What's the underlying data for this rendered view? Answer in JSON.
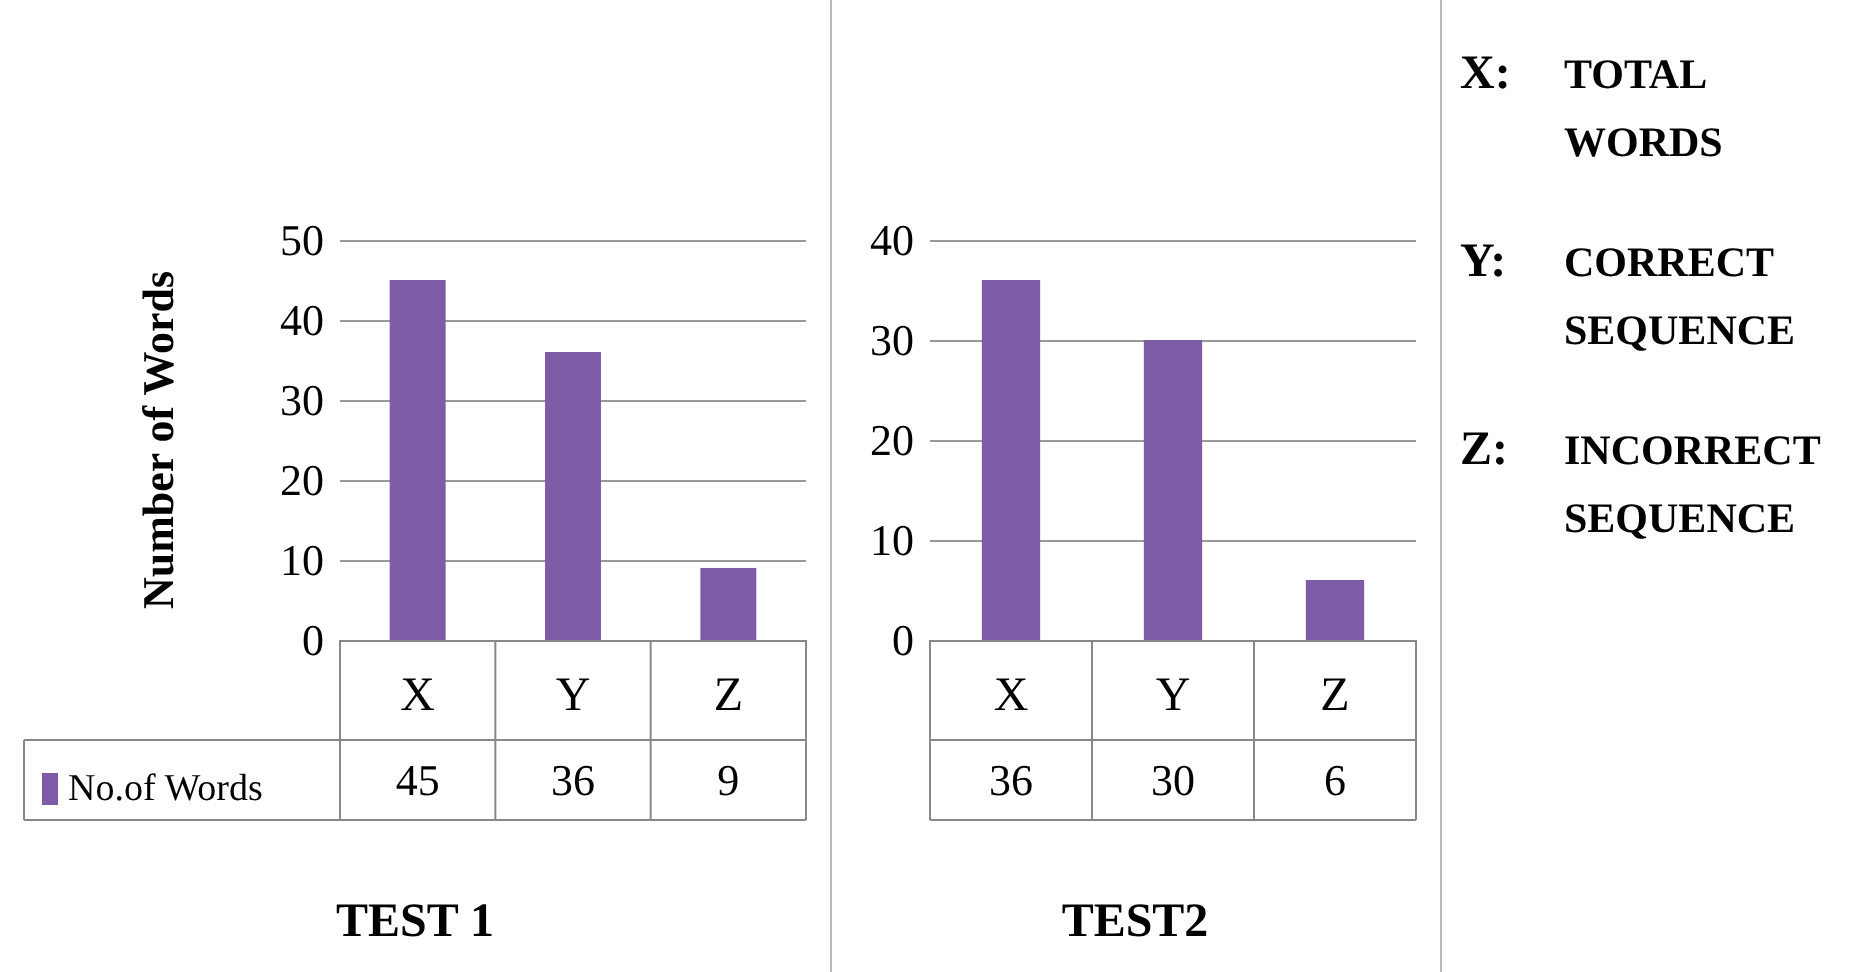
{
  "chart_data": [
    {
      "type": "bar",
      "title": "TEST 1",
      "ylabel": "Number of Words",
      "categories": [
        "X",
        "Y",
        "Z"
      ],
      "series": [
        {
          "name": "No.of Words",
          "color": "#7d5ba6",
          "values": [
            45,
            36,
            9
          ]
        }
      ],
      "ylim": [
        0,
        50
      ],
      "yticks": [
        0,
        10,
        20,
        30,
        40,
        50
      ],
      "grid": "y",
      "legend": "bottom",
      "data_labels": true
    },
    {
      "type": "bar",
      "title": "TEST2",
      "categories": [
        "X",
        "Y",
        "Z"
      ],
      "series": [
        {
          "color": "#7d5ba6",
          "values": [
            36,
            30,
            6
          ]
        }
      ],
      "ylim": [
        0,
        40
      ],
      "yticks": [
        0,
        10,
        20,
        30,
        40
      ],
      "grid": "y",
      "data_labels": true
    },
    {
      "type": "other",
      "annotations": [
        "X: TOTAL WORDS",
        "Y: CORRECT SEQUENCE",
        "Z: INCORRECT SEQUENCE"
      ]
    }
  ]
}
